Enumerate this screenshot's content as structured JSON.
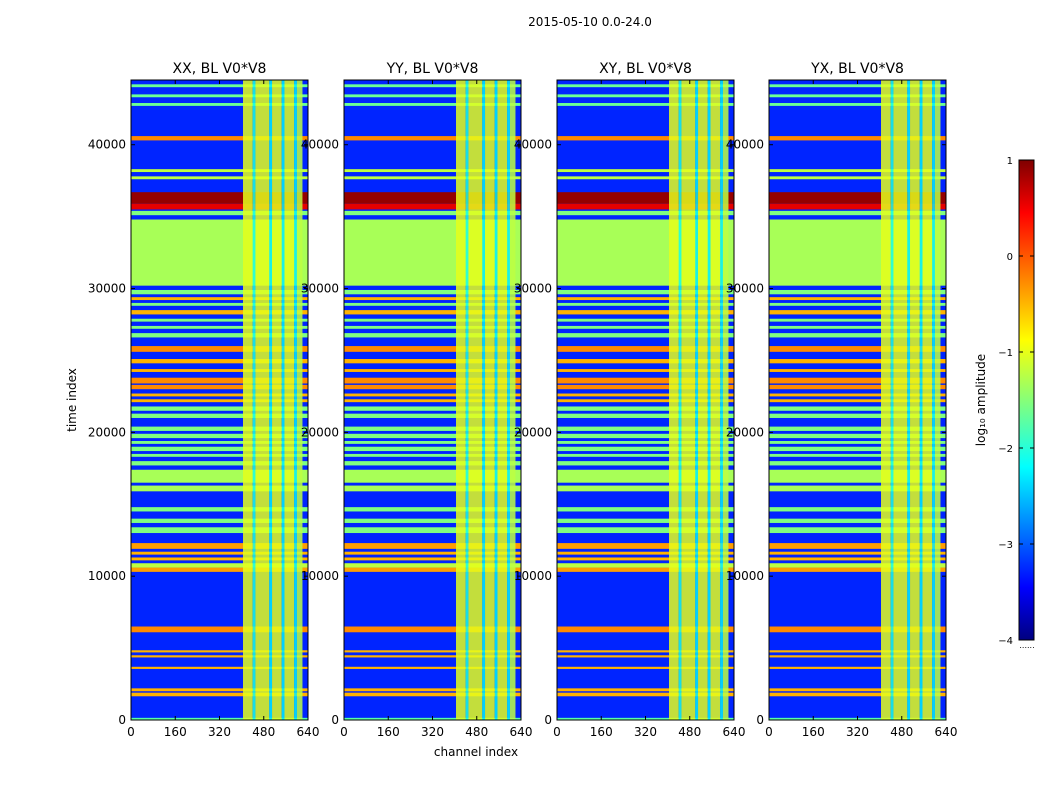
{
  "figure": {
    "suptitle": "2015-05-10 0.0-24.0",
    "xlabel": "channel index",
    "ylabel": "time index"
  },
  "chart_data": {
    "type": "heatmap",
    "x_range": [
      0,
      640
    ],
    "y_range": [
      0,
      44500
    ],
    "x_ticks": [
      0,
      160,
      320,
      480,
      640
    ],
    "y_ticks": [
      0,
      10000,
      20000,
      30000,
      40000
    ],
    "panels": [
      {
        "title": "XX, BL V0*V8",
        "pol": "XX"
      },
      {
        "title": "YY, BL V0*V8",
        "pol": "YY"
      },
      {
        "title": "XY, BL V0*V8",
        "pol": "XY"
      },
      {
        "title": "YX, BL V0*V8",
        "pol": "YX"
      }
    ],
    "background_log10": -3.2,
    "row_bands": [
      {
        "y0": 0,
        "y1": 150,
        "v": -1.7
      },
      {
        "y0": 1650,
        "y1": 1900,
        "v": -0.5
      },
      {
        "y0": 2000,
        "y1": 2200,
        "v": -0.5
      },
      {
        "y0": 3550,
        "y1": 3700,
        "v": -0.5
      },
      {
        "y0": 4350,
        "y1": 4500,
        "v": -0.5
      },
      {
        "y0": 4700,
        "y1": 4850,
        "v": -0.5
      },
      {
        "y0": 6100,
        "y1": 6500,
        "v": -0.3
      },
      {
        "y0": 10300,
        "y1": 10600,
        "v": -0.4
      },
      {
        "y0": 10600,
        "y1": 10900,
        "v": -1.2
      },
      {
        "y0": 11100,
        "y1": 11300,
        "v": -0.5
      },
      {
        "y0": 11500,
        "y1": 11700,
        "v": -0.5
      },
      {
        "y0": 11900,
        "y1": 12300,
        "v": -0.4
      },
      {
        "y0": 13000,
        "y1": 13400,
        "v": -1.5
      },
      {
        "y0": 13700,
        "y1": 14000,
        "v": -1.5
      },
      {
        "y0": 14500,
        "y1": 14800,
        "v": -1.5
      },
      {
        "y0": 15900,
        "y1": 16300,
        "v": -1.3
      },
      {
        "y0": 16500,
        "y1": 17400,
        "v": -1.3
      },
      {
        "y0": 17700,
        "y1": 18000,
        "v": -1.5
      },
      {
        "y0": 18300,
        "y1": 18500,
        "v": -1.5
      },
      {
        "y0": 18700,
        "y1": 19000,
        "v": -1.5
      },
      {
        "y0": 19200,
        "y1": 19400,
        "v": -1.5
      },
      {
        "y0": 19600,
        "y1": 19900,
        "v": -1.5
      },
      {
        "y0": 20100,
        "y1": 20400,
        "v": -1.5
      },
      {
        "y0": 21000,
        "y1": 21300,
        "v": -1.5
      },
      {
        "y0": 21500,
        "y1": 21800,
        "v": -1.5
      },
      {
        "y0": 22100,
        "y1": 22300,
        "v": -0.5
      },
      {
        "y0": 22500,
        "y1": 22700,
        "v": -0.5
      },
      {
        "y0": 23000,
        "y1": 23300,
        "v": -0.3
      },
      {
        "y0": 23400,
        "y1": 23800,
        "v": -0.3
      },
      {
        "y0": 24200,
        "y1": 24400,
        "v": -0.5
      },
      {
        "y0": 24800,
        "y1": 25100,
        "v": -0.5
      },
      {
        "y0": 25600,
        "y1": 26000,
        "v": -0.3
      },
      {
        "y0": 26600,
        "y1": 26900,
        "v": -1.5
      },
      {
        "y0": 27200,
        "y1": 27400,
        "v": -1.5
      },
      {
        "y0": 27700,
        "y1": 27900,
        "v": -1.5
      },
      {
        "y0": 28200,
        "y1": 28500,
        "v": -0.5
      },
      {
        "y0": 28800,
        "y1": 29000,
        "v": -1.5
      },
      {
        "y0": 29200,
        "y1": 29400,
        "v": -0.5
      },
      {
        "y0": 29600,
        "y1": 29900,
        "v": -1.5
      },
      {
        "y0": 30200,
        "y1": 34800,
        "v": -1.3
      },
      {
        "y0": 35100,
        "y1": 35400,
        "v": -1.5
      },
      {
        "y0": 35500,
        "y1": 35900,
        "v": 0.5
      },
      {
        "y0": 35900,
        "y1": 36700,
        "v": 0.9
      },
      {
        "y0": 37600,
        "y1": 37800,
        "v": -1.2
      },
      {
        "y0": 38100,
        "y1": 38300,
        "v": -1.2
      },
      {
        "y0": 40300,
        "y1": 40600,
        "v": -0.3
      },
      {
        "y0": 42700,
        "y1": 42900,
        "v": -1.6
      },
      {
        "y0": 43300,
        "y1": 43500,
        "v": -1.6
      },
      {
        "y0": 44000,
        "y1": 44200,
        "v": -1.6
      }
    ],
    "column_bands": [
      {
        "x0": 405,
        "x1": 440,
        "v": -1.0
      },
      {
        "x0": 440,
        "x1": 450,
        "v": -2.0
      },
      {
        "x0": 450,
        "x1": 500,
        "v": -1.0
      },
      {
        "x0": 500,
        "x1": 510,
        "v": -2.2
      },
      {
        "x0": 510,
        "x1": 545,
        "v": -1.0
      },
      {
        "x0": 545,
        "x1": 555,
        "v": -2.2
      },
      {
        "x0": 555,
        "x1": 590,
        "v": -1.0
      },
      {
        "x0": 590,
        "x1": 600,
        "v": -2.2
      },
      {
        "x0": 600,
        "x1": 620,
        "v": -1.2
      }
    ],
    "colorbar": {
      "label": "log₁₀ amplitude",
      "range": [
        -4,
        1
      ],
      "ticks": [
        1,
        0,
        -1,
        -2,
        -3,
        -4
      ],
      "colormap": "jet",
      "extra_tick_label": "......"
    }
  }
}
